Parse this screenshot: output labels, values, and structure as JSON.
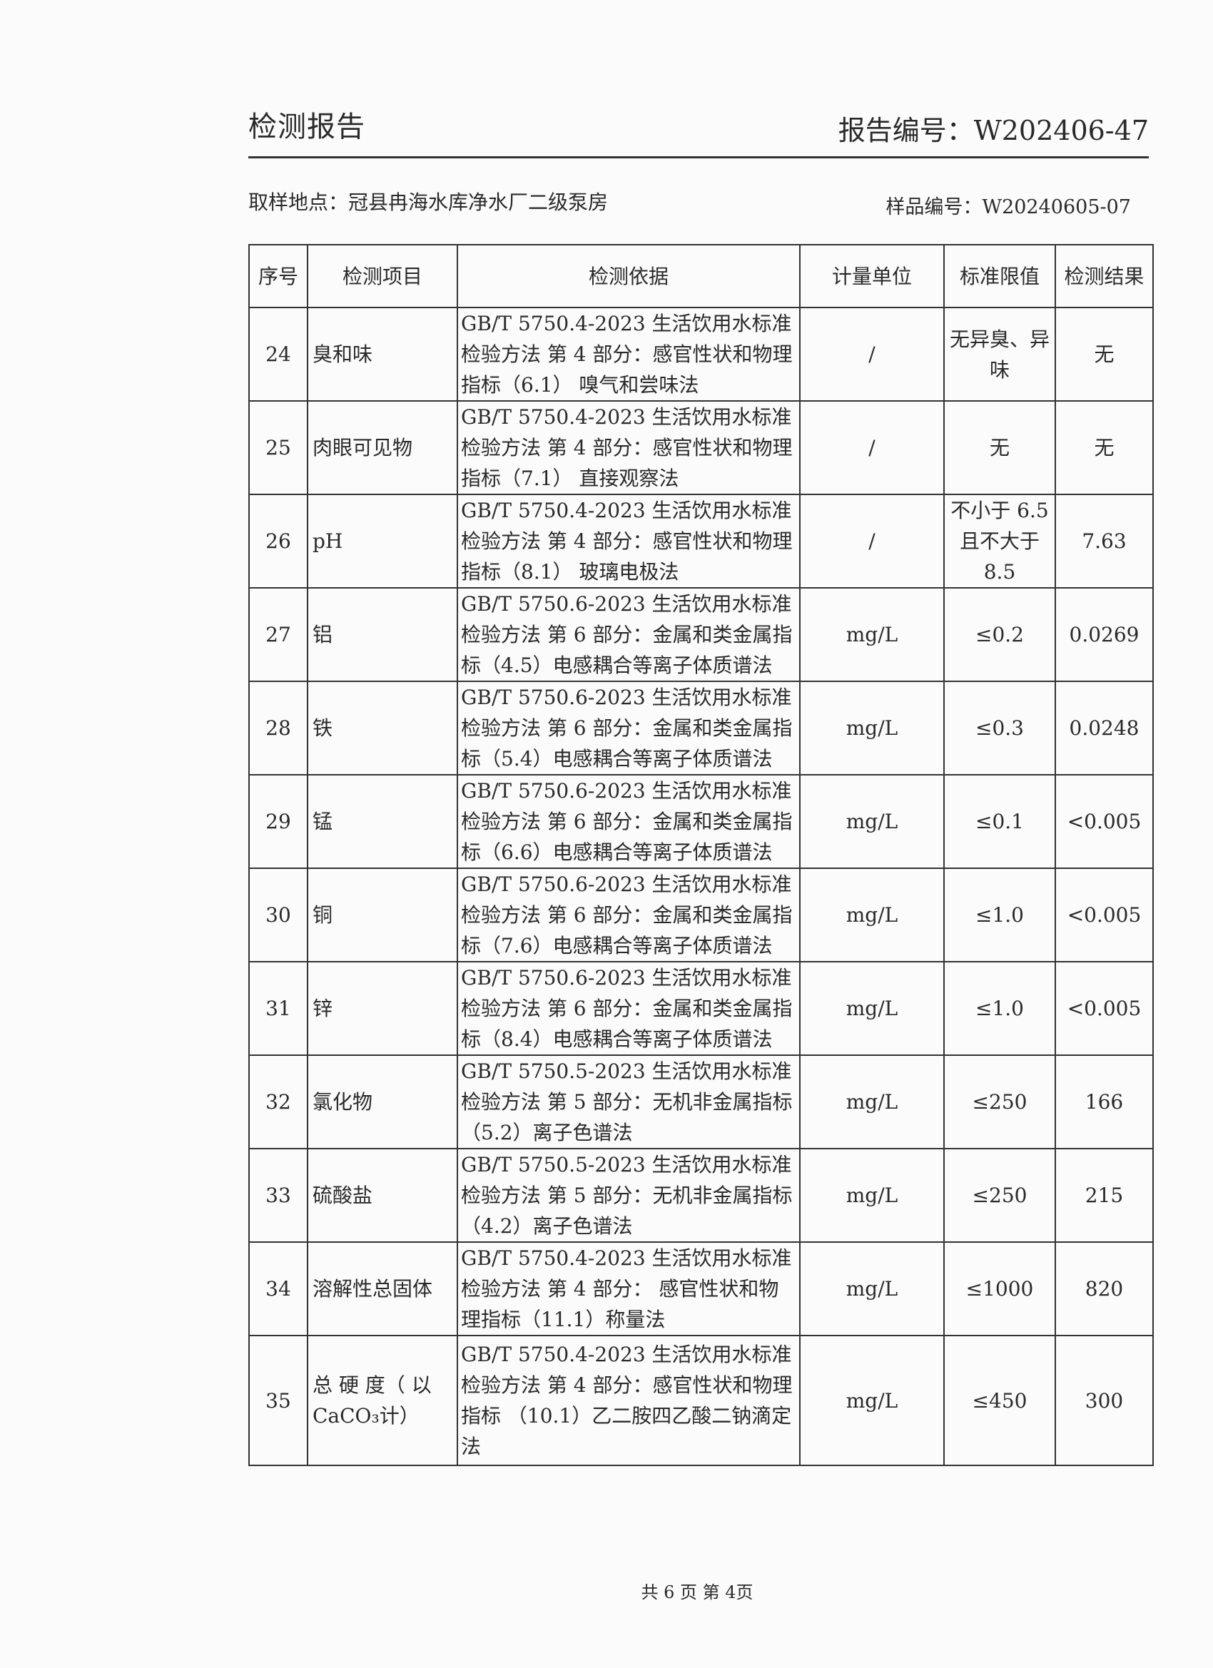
{
  "header": {
    "title": "检测报告",
    "report_no": "报告编号：W202406-47"
  },
  "sample_location": "取样地点：冠县冉海水库净水厂二级泵房",
  "sample_no": "样品编号：W20240605-07",
  "table": {
    "columns": [
      "序号",
      "检测项目",
      "检测依据",
      "计量单位",
      "标准限值",
      "检测结果"
    ],
    "rows": [
      {
        "no": "24",
        "item": "臭和味",
        "basis": "GB/T 5750.4-2023 生活饮用水标准检验方法 第 4 部分：感官性状和物理指标（6.1） 嗅气和尝味法",
        "unit": "/",
        "limit": "无异臭、异味",
        "result": "无"
      },
      {
        "no": "25",
        "item": "肉眼可见物",
        "basis": "GB/T 5750.4-2023 生活饮用水标准检验方法 第 4 部分：感官性状和物理指标（7.1） 直接观察法",
        "unit": "/",
        "limit": "无",
        "result": "无"
      },
      {
        "no": "26",
        "item": "pH",
        "basis": "GB/T 5750.4-2023 生活饮用水标准检验方法 第 4 部分：感官性状和物理指标（8.1） 玻璃电极法",
        "unit": "/",
        "limit": "不小于 6.5 且不大于 8.5",
        "result": "7.63"
      },
      {
        "no": "27",
        "item": "铝",
        "basis": "GB/T 5750.6-2023 生活饮用水标准检验方法 第 6 部分：金属和类金属指标（4.5）电感耦合等离子体质谱法",
        "unit": "mg/L",
        "limit": "≤0.2",
        "result": "0.0269"
      },
      {
        "no": "28",
        "item": "铁",
        "basis": "GB/T 5750.6-2023 生活饮用水标准检验方法 第 6 部分：金属和类金属指标（5.4）电感耦合等离子体质谱法",
        "unit": "mg/L",
        "limit": "≤0.3",
        "result": "0.0248"
      },
      {
        "no": "29",
        "item": "锰",
        "basis": "GB/T 5750.6-2023 生活饮用水标准检验方法 第 6 部分：金属和类金属指标（6.6）电感耦合等离子体质谱法",
        "unit": "mg/L",
        "limit": "≤0.1",
        "result": "<0.005"
      },
      {
        "no": "30",
        "item": "铜",
        "basis": "GB/T 5750.6-2023 生活饮用水标准检验方法 第 6 部分：金属和类金属指标（7.6）电感耦合等离子体质谱法",
        "unit": "mg/L",
        "limit": "≤1.0",
        "result": "<0.005"
      },
      {
        "no": "31",
        "item": "锌",
        "basis": "GB/T 5750.6-2023 生活饮用水标准检验方法 第 6 部分：金属和类金属指标（8.4）电感耦合等离子体质谱法",
        "unit": "mg/L",
        "limit": "≤1.0",
        "result": "<0.005"
      },
      {
        "no": "32",
        "item": "氯化物",
        "basis": "GB/T 5750.5-2023 生活饮用水标准检验方法 第 5 部分：无机非金属指标（5.2）离子色谱法",
        "unit": "mg/L",
        "limit": "≤250",
        "result": "166"
      },
      {
        "no": "33",
        "item": "硫酸盐",
        "basis": "GB/T 5750.5-2023 生活饮用水标准检验方法 第 5 部分：无机非金属指标（4.2）离子色谱法",
        "unit": "mg/L",
        "limit": "≤250",
        "result": "215"
      },
      {
        "no": "34",
        "item": "溶解性总固体",
        "basis": "GB/T 5750.4-2023 生活饮用水标准检验方法 第 4 部分： 感官性状和物理指标（11.1）称量法",
        "unit": "mg/L",
        "limit": "≤1000",
        "result": "820"
      },
      {
        "no": "35",
        "item": "总 硬 度（ 以 CaCO₃计）",
        "basis": "GB/T 5750.4-2023 生活饮用水标准检验方法 第 4 部分：感官性状和物理指标 （10.1）乙二胺四乙酸二钠滴定法",
        "unit": "mg/L",
        "limit": "≤450",
        "result": "300"
      }
    ]
  },
  "footer": "共 6 页   第 4页"
}
